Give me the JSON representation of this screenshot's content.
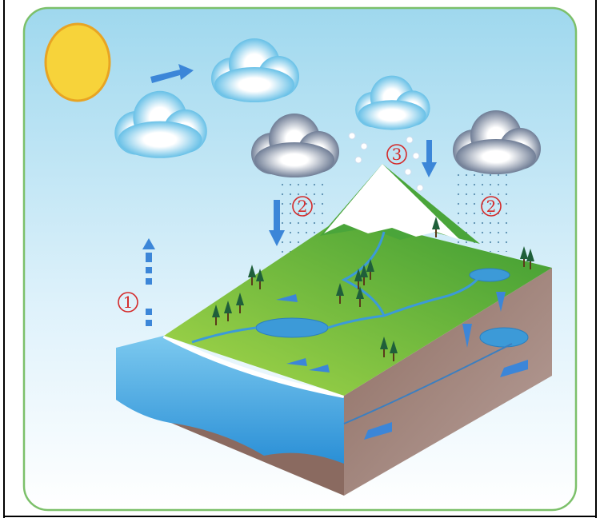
{
  "labels": [
    "1",
    "2",
    "3",
    "2"
  ]
}
